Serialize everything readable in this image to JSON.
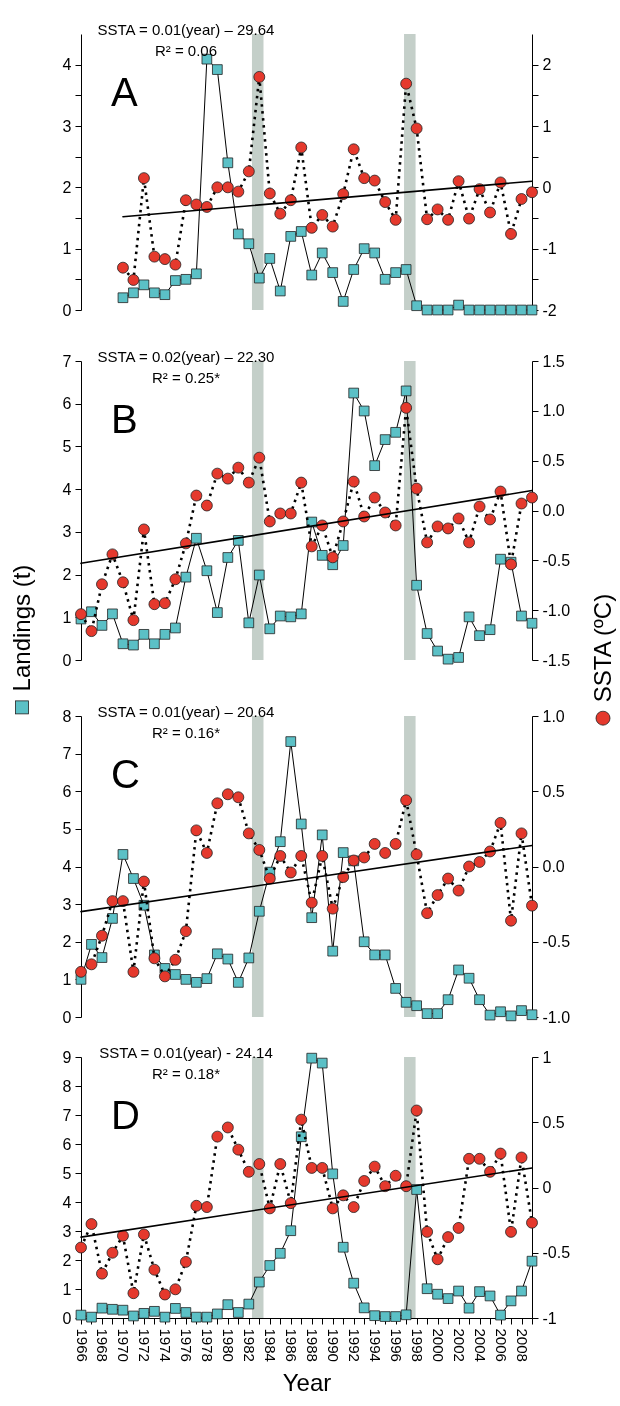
{
  "chart_data": [
    {
      "type": "line",
      "annotations": [
        "SSTA = 0.01(year) – 29.64",
        "R² = 0.06",
        "A"
      ],
      "xlim": [
        1966,
        2009
      ],
      "tick_labels": "y",
      "ylim": [
        0,
        4.5
      ],
      "yticks": [
        0,
        {
          "value": 0.5,
          "label": null
        },
        1,
        {
          "value": 1.5,
          "label": null
        },
        2,
        {
          "value": 2.5,
          "label": null
        },
        3,
        {
          "value": 3.5,
          "label": null
        },
        4
      ],
      "y2lim": [
        -2,
        2.5
      ],
      "y2ticks": [
        -2,
        {
          "value": -1.5,
          "label": null
        },
        -1,
        {
          "value": -0.5,
          "label": null
        },
        0,
        {
          "value": 0.5,
          "label": null
        },
        1,
        {
          "value": 1.5,
          "label": null
        },
        2
      ],
      "bands": [
        {
          "axis": "x",
          "from": 1982.3,
          "to": 1983.4,
          "color": "#c4cfc9"
        },
        {
          "axis": "x",
          "from": 1996.8,
          "to": 1997.9,
          "color": "#c4cfc9"
        }
      ],
      "series": [
        {
          "type": "line",
          "axis": "y",
          "color": "#5bc0c6",
          "marker": "square",
          "line_style": "solid",
          "x": [
            1970,
            1971,
            1972,
            1973,
            1974,
            1975,
            1976,
            1977,
            1978,
            1979,
            1980,
            1981,
            1982,
            1983,
            1984,
            1985,
            1986,
            1987,
            1988,
            1989,
            1990,
            1991,
            1992,
            1993,
            1994,
            1995,
            1996,
            1997,
            1998,
            1999,
            2000,
            2001,
            2002,
            2003,
            2004,
            2005,
            2006,
            2007,
            2008,
            2009
          ],
          "values": [
            0.2,
            0.28,
            0.41,
            0.28,
            0.25,
            0.48,
            0.5,
            0.59,
            4.09,
            3.92,
            2.4,
            1.24,
            1.08,
            0.52,
            0.84,
            0.31,
            1.2,
            1.28,
            0.57,
            0.93,
            0.61,
            0.14,
            0.66,
            1.0,
            0.93,
            0.5,
            0.61,
            0.66,
            0.07,
            0,
            0,
            0,
            0.08,
            0,
            0,
            0,
            0,
            0,
            0,
            0
          ]
        },
        {
          "type": "line",
          "axis": "y2",
          "color": "#e5392d",
          "marker": "circle",
          "line_style": "dotted",
          "x": [
            1970,
            1971,
            1972,
            1973,
            1974,
            1975,
            1976,
            1977,
            1978,
            1979,
            1980,
            1981,
            1982,
            1983,
            1984,
            1985,
            1986,
            1987,
            1988,
            1989,
            1990,
            1991,
            1992,
            1993,
            1994,
            1995,
            1996,
            1997,
            1998,
            1999,
            2000,
            2001,
            2002,
            2003,
            2004,
            2005,
            2006,
            2007,
            2008,
            2009
          ],
          "values": [
            -1.31,
            -1.51,
            0.15,
            -1.13,
            -1.17,
            -1.26,
            -0.21,
            -0.28,
            -0.32,
            0.0,
            0.0,
            -0.07,
            0.26,
            1.8,
            -0.1,
            -0.43,
            -0.21,
            0.65,
            -0.66,
            -0.45,
            -0.64,
            -0.11,
            0.62,
            0.15,
            0.11,
            -0.24,
            -0.53,
            1.69,
            0.96,
            -0.52,
            -0.36,
            -0.53,
            0.1,
            -0.51,
            -0.03,
            -0.41,
            0.08,
            -0.76,
            -0.19,
            -0.08
          ]
        },
        {
          "type": "line",
          "axis": "y2",
          "color": "#000000",
          "marker": "none",
          "line_style": "solid",
          "x": [
            1970,
            2009
          ],
          "values": [
            -0.48,
            0.1
          ]
        }
      ]
    },
    {
      "type": "line",
      "ylabel": "Landings (t)",
      "y2label": "SSTA (ºC)",
      "annotations": [
        "SSTA = 0.02(year) – 22.30",
        "R² = 0.25*",
        "B"
      ],
      "xlim": [
        1966,
        2009
      ],
      "tick_labels": "y",
      "ylim": [
        0,
        7
      ],
      "yticks": [
        0,
        1,
        2,
        3,
        4,
        5,
        6,
        7
      ],
      "y2lim": [
        -1.5,
        1.5
      ],
      "y2ticks": [
        -1.5,
        {
          "value": -1,
          "label": "-1.0"
        },
        -0.5,
        {
          "value": 0,
          "label": "0.0"
        },
        0.5,
        {
          "value": 1,
          "label": "1.0"
        },
        1.5
      ],
      "bands": [
        {
          "axis": "x",
          "from": 1982.3,
          "to": 1983.4,
          "color": "#c4cfc9"
        },
        {
          "axis": "x",
          "from": 1996.8,
          "to": 1997.9,
          "color": "#c4cfc9"
        }
      ],
      "x": [
        1966,
        1967,
        1968,
        1969,
        1970,
        1971,
        1972,
        1973,
        1974,
        1975,
        1976,
        1977,
        1978,
        1979,
        1980,
        1981,
        1982,
        1983,
        1984,
        1985,
        1986,
        1987,
        1988,
        1989,
        1990,
        1991,
        1992,
        1993,
        1994,
        1995,
        1996,
        1997,
        1998,
        1999,
        2000,
        2001,
        2002,
        2003,
        2004,
        2005,
        2006,
        2007,
        2008,
        2009
      ],
      "series": [
        {
          "type": "line",
          "axis": "y",
          "color": "#5bc0c6",
          "marker": "square",
          "line_style": "solid",
          "values": [
            0.96,
            1.13,
            0.81,
            1.08,
            0.38,
            0.35,
            0.6,
            0.38,
            0.6,
            0.75,
            1.94,
            2.85,
            2.09,
            1.11,
            2.4,
            2.8,
            0.87,
            1.99,
            0.73,
            1.03,
            1.01,
            1.08,
            3.23,
            2.45,
            2.23,
            2.68,
            6.25,
            5.83,
            4.55,
            5.16,
            5.33,
            6.3,
            1.75,
            0.62,
            0.21,
            0.02,
            0.06,
            1.01,
            0.57,
            0.71,
            2.36,
            2.29,
            1.03,
            0.86
          ]
        },
        {
          "type": "line",
          "axis": "y2",
          "color": "#e5392d",
          "marker": "circle",
          "line_style": "dotted",
          "values": [
            -1.04,
            -1.21,
            -0.74,
            -0.44,
            -0.72,
            -1.1,
            -0.19,
            -0.94,
            -0.93,
            -0.69,
            -0.33,
            0.15,
            0.05,
            0.37,
            0.32,
            0.43,
            0.28,
            0.53,
            -0.11,
            -0.03,
            -0.03,
            0.28,
            -0.36,
            -0.15,
            -0.47,
            -0.11,
            0.29,
            -0.06,
            0.13,
            -0.02,
            -0.15,
            1.03,
            0.22,
            -0.32,
            -0.16,
            -0.18,
            -0.08,
            -0.32,
            0.04,
            -0.09,
            0.19,
            -0.54,
            0.07,
            0.13
          ]
        },
        {
          "type": "line",
          "axis": "y2",
          "color": "#000000",
          "marker": "none",
          "line_style": "solid",
          "x": [
            1966,
            2009
          ],
          "values": [
            -0.53,
            0.2
          ]
        }
      ]
    },
    {
      "type": "line",
      "annotations": [
        "SSTA = 0.01(year) – 20.64",
        "R² = 0.16*",
        "C"
      ],
      "xlim": [
        1966,
        2009
      ],
      "tick_labels": "y",
      "ylim": [
        0,
        8
      ],
      "yticks": [
        0,
        1,
        2,
        3,
        4,
        5,
        6,
        7,
        8
      ],
      "y2lim": [
        -1,
        1
      ],
      "y2ticks": [
        {
          "value": -1,
          "label": "-1.0"
        },
        -0.5,
        {
          "value": 0,
          "label": "0.0"
        },
        0.5,
        {
          "value": 1,
          "label": "1.0"
        }
      ],
      "bands": [
        {
          "axis": "x",
          "from": 1982.3,
          "to": 1983.4,
          "color": "#c4cfc9"
        },
        {
          "axis": "x",
          "from": 1996.8,
          "to": 1997.9,
          "color": "#c4cfc9"
        }
      ],
      "x": [
        1966,
        1967,
        1968,
        1969,
        1970,
        1971,
        1972,
        1973,
        1974,
        1975,
        1976,
        1977,
        1978,
        1979,
        1980,
        1981,
        1982,
        1983,
        1984,
        1985,
        1986,
        1987,
        1988,
        1989,
        1990,
        1991,
        1992,
        1993,
        1994,
        1995,
        1996,
        1997,
        1998,
        1999,
        2000,
        2001,
        2002,
        2003,
        2004,
        2005,
        2006,
        2007,
        2008,
        2009
      ],
      "series": [
        {
          "type": "line",
          "axis": "y",
          "color": "#5bc0c6",
          "marker": "square",
          "line_style": "solid",
          "values": [
            1.0,
            1.93,
            1.58,
            2.62,
            4.32,
            3.68,
            2.97,
            1.65,
            1.29,
            1.13,
            1.0,
            0.92,
            1.02,
            1.68,
            1.54,
            0.92,
            1.57,
            2.81,
            3.85,
            4.66,
            7.32,
            5.13,
            2.64,
            4.84,
            1.75,
            4.37,
            4.15,
            2.0,
            1.65,
            1.65,
            0.76,
            0.39,
            0.3,
            0.09,
            0.09,
            0.46,
            1.25,
            1.03,
            0.46,
            0.05,
            0.14,
            0.03,
            0.17,
            0.06
          ]
        },
        {
          "type": "line",
          "axis": "y2",
          "color": "#e5392d",
          "marker": "circle",
          "line_style": "dotted",
          "values": [
            -0.7,
            -0.65,
            -0.46,
            -0.23,
            -0.23,
            -0.7,
            -0.1,
            -0.61,
            -0.73,
            -0.62,
            -0.43,
            0.24,
            0.09,
            0.42,
            0.48,
            0.46,
            0.22,
            0.11,
            -0.08,
            0.07,
            -0.04,
            0.07,
            -0.24,
            0.07,
            -0.28,
            -0.07,
            0.04,
            0.06,
            0.15,
            0.09,
            0.15,
            0.44,
            0.08,
            -0.31,
            -0.19,
            -0.08,
            -0.16,
            0.0,
            0.03,
            0.1,
            0.29,
            -0.36,
            0.22,
            -0.26
          ]
        },
        {
          "type": "line",
          "axis": "y2",
          "color": "#000000",
          "marker": "none",
          "line_style": "solid",
          "x": [
            1966,
            2009
          ],
          "values": [
            -0.3,
            0.14
          ]
        }
      ]
    },
    {
      "type": "line",
      "xlabel": "Year",
      "annotations": [
        "SSTA = 0.01(year) - 24.14",
        "R² = 0.18*",
        "D"
      ],
      "xlim": [
        1966,
        2009
      ],
      "xticks": [
        1966,
        {
          "value": 1967,
          "label": null
        },
        1968,
        {
          "value": 1969,
          "label": null
        },
        1970,
        {
          "value": 1971,
          "label": null
        },
        1972,
        {
          "value": 1973,
          "label": null
        },
        1974,
        {
          "value": 1975,
          "label": null
        },
        1976,
        {
          "value": 1977,
          "label": null
        },
        1978,
        {
          "value": 1979,
          "label": null
        },
        1980,
        {
          "value": 1981,
          "label": null
        },
        1982,
        {
          "value": 1983,
          "label": null
        },
        1984,
        {
          "value": 1985,
          "label": null
        },
        1986,
        {
          "value": 1987,
          "label": null
        },
        1988,
        {
          "value": 1989,
          "label": null
        },
        1990,
        {
          "value": 1991,
          "label": null
        },
        1992,
        {
          "value": 1993,
          "label": null
        },
        1994,
        {
          "value": 1995,
          "label": null
        },
        1996,
        {
          "value": 1997,
          "label": null
        },
        1998,
        {
          "value": 1999,
          "label": null
        },
        2000,
        {
          "value": 2001,
          "label": null
        },
        2002,
        {
          "value": 2003,
          "label": null
        },
        2004,
        {
          "value": 2005,
          "label": null
        },
        2006,
        {
          "value": 2007,
          "label": null
        },
        2008,
        {
          "value": 2009,
          "label": null
        }
      ],
      "ylim": [
        0,
        9
      ],
      "yticks": [
        0,
        1,
        2,
        3,
        4,
        5,
        6,
        7,
        8,
        9
      ],
      "y2lim": [
        -1,
        1
      ],
      "y2ticks": [
        -1,
        -0.5,
        0,
        0.5,
        1
      ],
      "bands": [
        {
          "axis": "x",
          "from": 1982.3,
          "to": 1983.4,
          "color": "#c4cfc9"
        },
        {
          "axis": "x",
          "from": 1996.8,
          "to": 1997.9,
          "color": "#c4cfc9"
        }
      ],
      "x": [
        1966,
        1967,
        1968,
        1969,
        1970,
        1971,
        1972,
        1973,
        1974,
        1975,
        1976,
        1977,
        1978,
        1979,
        1980,
        1981,
        1982,
        1983,
        1984,
        1985,
        1986,
        1987,
        1988,
        1989,
        1990,
        1991,
        1992,
        1993,
        1994,
        1995,
        1996,
        1997,
        1998,
        1999,
        2000,
        2001,
        2002,
        2003,
        2004,
        2005,
        2006,
        2007,
        2008,
        2009
      ],
      "series": [
        {
          "type": "line",
          "axis": "y",
          "color": "#5bc0c6",
          "marker": "square",
          "line_style": "solid",
          "values": [
            0.1,
            0.03,
            0.34,
            0.3,
            0.27,
            0.07,
            0.16,
            0.23,
            0.03,
            0.33,
            0.19,
            0.03,
            0.03,
            0.14,
            0.46,
            0.19,
            0.48,
            1.24,
            1.81,
            2.23,
            3.01,
            6.25,
            8.96,
            8.79,
            4.97,
            2.44,
            1.2,
            0.35,
            0.08,
            0.05,
            0.05,
            0.11,
            4.43,
            1.01,
            0.82,
            0.67,
            0.93,
            0.34,
            0.91,
            0.76,
            0.1,
            0.59,
            0.93,
            1.96
          ]
        },
        {
          "type": "line",
          "axis": "y2",
          "color": "#e5392d",
          "marker": "circle",
          "line_style": "dotted",
          "values": [
            -0.46,
            -0.28,
            -0.66,
            -0.5,
            -0.37,
            -0.81,
            -0.36,
            -0.63,
            -0.82,
            -0.78,
            -0.57,
            -0.14,
            -0.15,
            0.39,
            0.46,
            0.29,
            0.12,
            0.18,
            -0.16,
            0.18,
            -0.12,
            0.52,
            0.15,
            0.15,
            -0.16,
            -0.06,
            -0.15,
            0.05,
            0.16,
            0.01,
            0.09,
            0.01,
            0.59,
            -0.34,
            -0.55,
            -0.38,
            -0.31,
            0.22,
            0.22,
            0.12,
            0.26,
            -0.34,
            0.23,
            -0.27
          ]
        },
        {
          "type": "line",
          "axis": "y2",
          "color": "#000000",
          "marker": "none",
          "line_style": "solid",
          "x": [
            1966,
            2009
          ],
          "values": [
            -0.38,
            0.15
          ]
        }
      ]
    }
  ]
}
